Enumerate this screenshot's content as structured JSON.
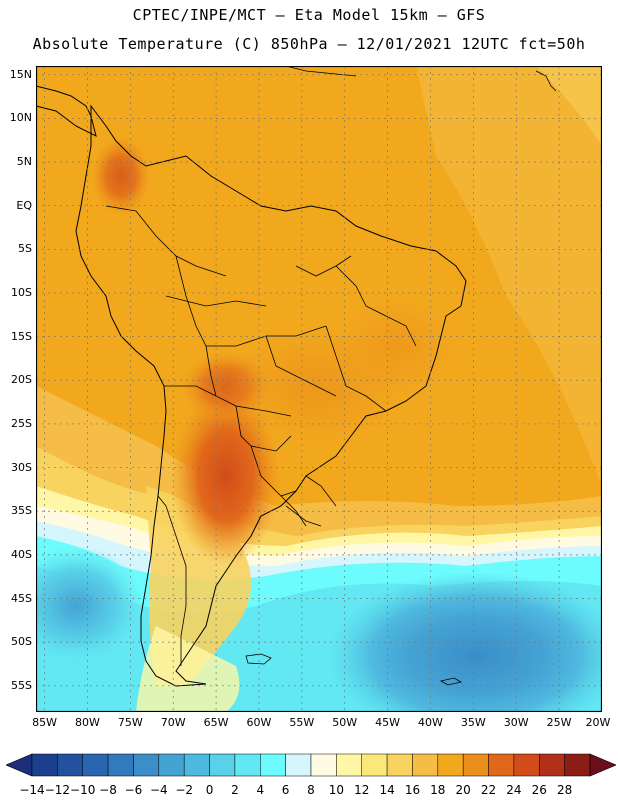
{
  "header": {
    "line1": "CPTEC/INPE/MCT –  Eta Model 15km – GFS",
    "line2": "Absolute Temperature (C) 850hPa – 12/01/2021 12UTC fct=50h"
  },
  "map": {
    "lat_labels": [
      "15N",
      "10N",
      "5N",
      "EQ",
      "5S",
      "10S",
      "15S",
      "20S",
      "25S",
      "30S",
      "35S",
      "40S",
      "45S",
      "50S",
      "55S"
    ],
    "lon_labels": [
      "85W",
      "80W",
      "75W",
      "70W",
      "65W",
      "60W",
      "55W",
      "50W",
      "45W",
      "40W",
      "35W",
      "30W",
      "25W",
      "20W"
    ],
    "lat_range": [
      16,
      -58
    ],
    "lon_range": [
      -86,
      -20
    ],
    "field": "850hPa temperature"
  },
  "colorbar": {
    "labels": [
      "-14",
      "-12",
      "-10",
      "-8",
      "-6",
      "-4",
      "-2",
      "0",
      "2",
      "4",
      "6",
      "8",
      "10",
      "12",
      "14",
      "16",
      "18",
      "20",
      "22",
      "24",
      "26",
      "28"
    ],
    "colors": [
      "#1c3f8f",
      "#22519f",
      "#2a66b0",
      "#3279bd",
      "#3b8ec8",
      "#45a3d4",
      "#4fbadf",
      "#59d2e9",
      "#62e8f3",
      "#6dfcfd",
      "#d6f6fd",
      "#fffbe3",
      "#fff7a6",
      "#fbe87a",
      "#f8d35f",
      "#f5bd45",
      "#f2a81d",
      "#eb8f1c",
      "#e1681b",
      "#d14c1a",
      "#b23019",
      "#8a1e16"
    ],
    "under_color": "#1b2f7a",
    "over_color": "#6a0e1e"
  }
}
